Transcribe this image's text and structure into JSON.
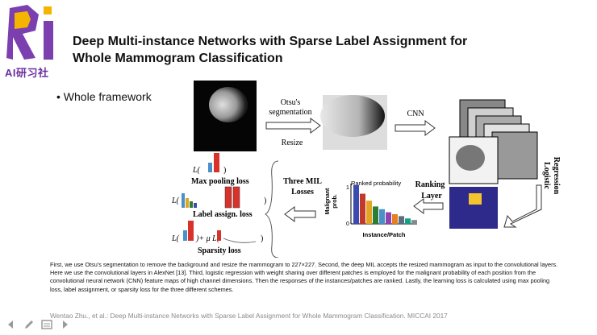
{
  "logo": {
    "brand_text": "AI研习社",
    "mark": "Ri",
    "color": "#6b2fa0",
    "accent": "#f4b400"
  },
  "slide": {
    "title_line1": "Deep Multi-instance Networks with Sparse Label Assignment for",
    "title_line2": "Whole Mammogram Classification",
    "bullet": "Whole framework",
    "caption": "First, we use Otsu's segmentation to remove the background and resize the mammogram to 227×227. Second, the deep MIL accepts the resized mammogram as input to the convolutional layers. Here we use the convolutional layers in AlexNet [13]. Third, logistic regression with weight sharing over different patches is employed for the malignant probability of each position from the convolutional neural network (CNN) feature maps of high channel dimensions. Then the responses of the instances/patches are ranked. Lastly, the learning loss is calculated using max pooling loss, label assignment, or sparsity loss for the three different schemes.",
    "reference": "Wentao Zhu., et al.: Deep Multi-instance Networks with Sparse Label Assignment for Whole Mammogram Classification. MICCAI 2017"
  },
  "figure": {
    "otsu_line1": "Otsu's",
    "otsu_line2": "segmentation",
    "resize": "Resize",
    "cnn": "CNN",
    "logistic_line1": "Logistic",
    "logistic_line2": "Regression",
    "ranking_line1": "Ranking",
    "ranking_line2": "Layer",
    "ranked_probability": "Ranked probability",
    "malignant_line1": "Malignant",
    "malignant_line2": "prob.",
    "tick_1": "1",
    "tick_0": "0",
    "instance_patch": "Instance/Patch",
    "mil_line1": "Three MIL",
    "mil_line2": "Losses",
    "max_pooling_loss": "Max pooling loss",
    "label_assign_loss": "Label assign. loss",
    "sparsity_loss": "Sparsity loss",
    "formula_L_open": "L(",
    "formula_close": ")",
    "formula_plus_mu": ")+ μ L(",
    "ranked_values": [
      1.0,
      0.78,
      0.6,
      0.45,
      0.38,
      0.3,
      0.25,
      0.2,
      0.14,
      0.1
    ],
    "ranked_colors": [
      "#3b4bb0",
      "#c0392b",
      "#e3a325",
      "#2e7d32",
      "#4a90c9",
      "#8e44ad",
      "#e67e22",
      "#5d6d7e",
      "#16a085",
      "#7f8c8d"
    ]
  },
  "toolbar": {
    "icons": [
      "prev-arrow-icon",
      "pen-icon",
      "slides-icon",
      "next-arrow-icon"
    ]
  }
}
